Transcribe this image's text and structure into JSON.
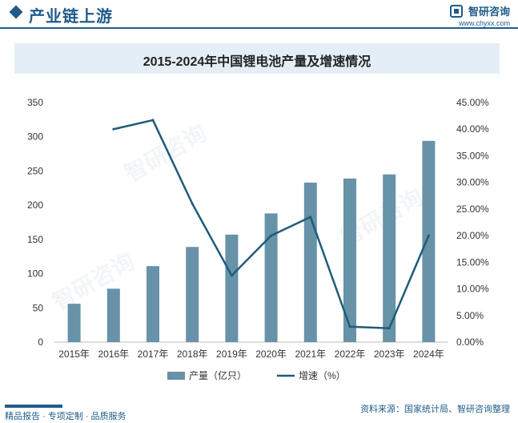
{
  "header": {
    "title": "产业链上游",
    "logo_name": "智研咨询",
    "logo_url": "www.chyxx.com"
  },
  "chart_title": "2015-2024年中国锂电池产量及增速情况",
  "footer": {
    "left": "精品报告 · 专项定制 · 品质服务",
    "right": "资料来源：国家统计局、智研咨询整理"
  },
  "watermark_text": "智研咨询",
  "colors": {
    "brand": "#1f5c8a",
    "bar": "#6792a8",
    "line": "#1f5c7a",
    "title_bg": "#e4eef6"
  },
  "chart_data": {
    "type": "bar",
    "title": "2015-2024年中国锂电池产量及增速情况",
    "categories": [
      "2015年",
      "2016年",
      "2017年",
      "2018年",
      "2019年",
      "2020年",
      "2021年",
      "2022年",
      "2023年",
      "2024年"
    ],
    "series": [
      {
        "name": "产量（亿只）",
        "type": "bar",
        "axis": "left",
        "values": [
          56,
          78,
          111,
          139,
          157,
          188,
          233,
          239,
          245,
          294
        ]
      },
      {
        "name": "增速（%）",
        "type": "line",
        "axis": "right",
        "values": [
          null,
          40.0,
          41.7,
          26.0,
          12.5,
          20.0,
          23.5,
          2.9,
          2.6,
          20.0
        ]
      }
    ],
    "y_left": {
      "min": 0,
      "max": 350,
      "ticks": [
        "0",
        "50",
        "100",
        "150",
        "200",
        "250",
        "300",
        "350"
      ]
    },
    "y_right": {
      "min": 0,
      "max": 45,
      "ticks": [
        "0.00%",
        "5.00%",
        "10.00%",
        "15.00%",
        "20.00%",
        "25.00%",
        "30.00%",
        "35.00%",
        "40.00%",
        "45.00%"
      ]
    },
    "grid": false,
    "legend_position": "bottom"
  }
}
